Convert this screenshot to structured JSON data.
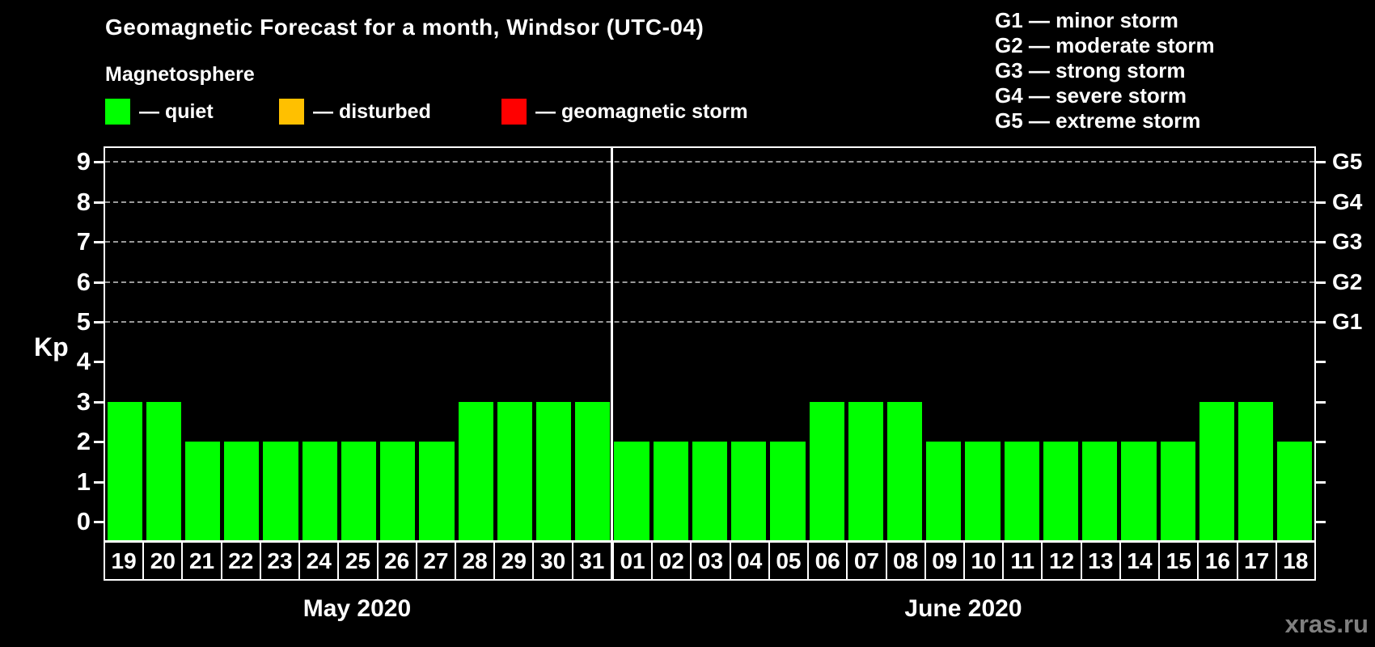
{
  "title": "Geomagnetic Forecast for a month, Windsor (UTC-04)",
  "subtitle": "Magnetosphere",
  "legend": {
    "items": [
      {
        "key": "quiet",
        "label": "— quiet",
        "color": "#00FF00"
      },
      {
        "key": "disturbed",
        "label": "— disturbed",
        "color": "#FFC000"
      },
      {
        "key": "storm",
        "label": "— geomagnetic storm",
        "color": "#FF0000"
      }
    ]
  },
  "g_legend": [
    "G1 — minor storm",
    "G2 — moderate storm",
    "G3 — strong storm",
    "G4 — severe storm",
    "G5 — extreme storm"
  ],
  "watermark": "xras.ru",
  "colors": {
    "background": "#000000",
    "text": "#FFFFFF",
    "axis": "#FFFFFF",
    "grid": "#999999",
    "quiet": "#00FF00",
    "disturbed": "#FFC000",
    "storm": "#FF0000",
    "watermark": "#808080"
  },
  "chart_data": {
    "type": "bar",
    "title": "Geomagnetic Forecast for a month, Windsor (UTC-04)",
    "ylabel": "Kp",
    "xlabel": "",
    "y_ticks": [
      0,
      1,
      2,
      3,
      4,
      5,
      6,
      7,
      8,
      9
    ],
    "ylim": [
      -0.47,
      9.35
    ],
    "grid": "horizontal dashed lines at Kp 5 to 9 only",
    "legend_position": "top-left",
    "right_axis": [
      {
        "label": "G1",
        "kp": 5
      },
      {
        "label": "G2",
        "kp": 6
      },
      {
        "label": "G3",
        "kp": 7
      },
      {
        "label": "G4",
        "kp": 8
      },
      {
        "label": "G5",
        "kp": 9
      }
    ],
    "months": [
      {
        "label": "May 2020",
        "days": [
          "19",
          "20",
          "21",
          "22",
          "23",
          "24",
          "25",
          "26",
          "27",
          "28",
          "29",
          "30",
          "31"
        ],
        "values": [
          3,
          3,
          2,
          2,
          2,
          2,
          2,
          2,
          2,
          3,
          3,
          3,
          3
        ],
        "statuses": [
          "quiet",
          "quiet",
          "quiet",
          "quiet",
          "quiet",
          "quiet",
          "quiet",
          "quiet",
          "quiet",
          "quiet",
          "quiet",
          "quiet",
          "quiet"
        ]
      },
      {
        "label": "June 2020",
        "days": [
          "01",
          "02",
          "03",
          "04",
          "05",
          "06",
          "07",
          "08",
          "09",
          "10",
          "11",
          "12",
          "13",
          "14",
          "15",
          "16",
          "17",
          "18"
        ],
        "values": [
          2,
          2,
          2,
          2,
          2,
          3,
          3,
          3,
          2,
          2,
          2,
          2,
          2,
          2,
          2,
          3,
          3,
          2
        ],
        "statuses": [
          "quiet",
          "quiet",
          "quiet",
          "quiet",
          "quiet",
          "quiet",
          "quiet",
          "quiet",
          "quiet",
          "quiet",
          "quiet",
          "quiet",
          "quiet",
          "quiet",
          "quiet",
          "quiet",
          "quiet",
          "quiet"
        ]
      }
    ]
  }
}
